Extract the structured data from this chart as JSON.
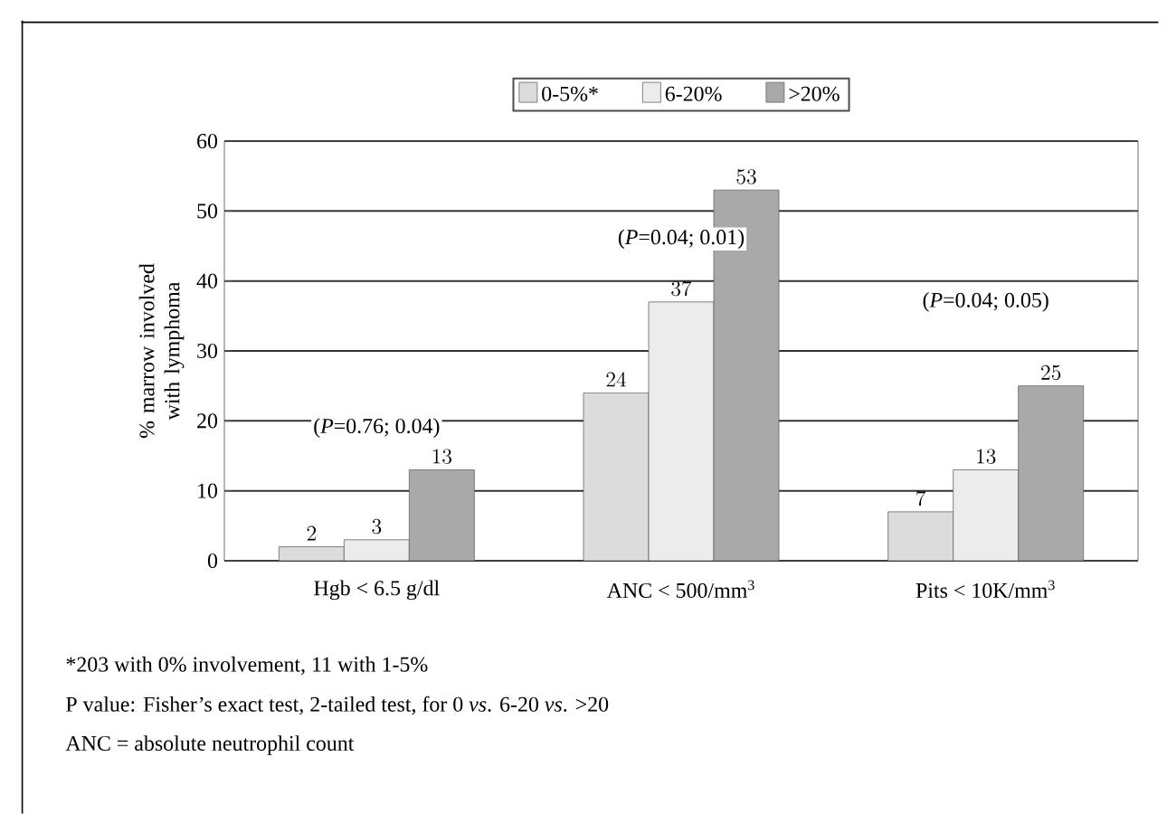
{
  "chart_data": {
    "type": "bar",
    "ylabel": "% marrow involved with lymphoma",
    "categories": [
      "Hgb < 6.5 g/dl",
      "ANC < 500/mm$^{3}$",
      "Pits < 10K/mm$^{3}$"
    ],
    "series": [
      {
        "name": "0-5%*",
        "color": "#dcdcdc",
        "values": [
          2,
          24,
          7
        ]
      },
      {
        "name": "6-20%",
        "color": "#ececec",
        "values": [
          3,
          37,
          13
        ]
      },
      {
        "name": ">20%",
        "color": "#a9a9a9",
        "values": [
          13,
          53,
          25
        ]
      }
    ],
    "ylim": [
      0,
      60
    ],
    "yticks": [
      0,
      10,
      20,
      30,
      40,
      50,
      60
    ],
    "grid": "y",
    "legend": "top",
    "data_labels": true,
    "annotations": [
      "(*P*=0.76; 0.04)",
      "(*P*=0.04; 0.01)",
      "(*P*=0.04; 0.05)",
      "*203 with 0% involvement, 11 with 1-5%",
      "P value: Fisher’s exact test, 2-tailed test, for 0 *vs*. 6-20 *vs*. >20",
      "ANC = absolute neutrophil count"
    ]
  }
}
